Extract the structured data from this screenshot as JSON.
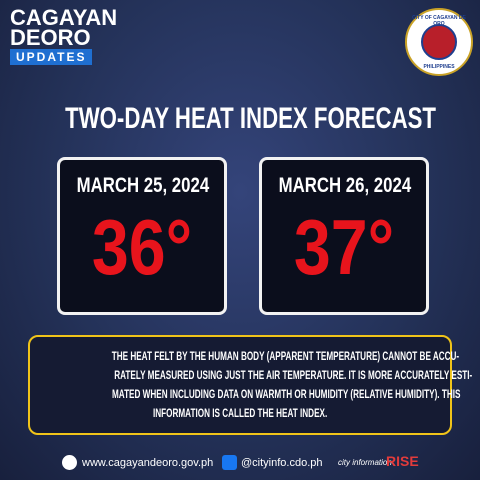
{
  "logo": {
    "line1": "CAGAYAN",
    "line2": "DEORO",
    "line3": "UPDATES"
  },
  "seal": {
    "top": "CITY OF CAGAYAN DE ORO",
    "bottom": "PHILIPPINES"
  },
  "title": "TWO-DAY HEAT INDEX FORECAST",
  "cards": [
    {
      "date": "MARCH 25, 2024",
      "heat_index": "36°"
    },
    {
      "date": "MARCH 26, 2024",
      "heat_index": "37°"
    }
  ],
  "note": {
    "lines": [
      "THE HEAT FELT BY THE HUMAN BODY (APPARENT TEMPERATURE) CANNOT BE ACCU-",
      "RATELY MEASURED USING JUST THE AIR TEMPERATURE. IT IS MORE ACCURATELY ESTI-",
      "MATED WHEN INCLUDING DATA ON WARMTH OR HUMIDITY (RELATIVE HUMIDITY). THIS",
      "INFORMATION IS CALLED THE HEAT INDEX."
    ]
  },
  "footer": {
    "website": "www.cagayandeoro.gov.ph",
    "social": "@cityinfo.cdo.ph",
    "office": "city information",
    "rise": "RISE"
  }
}
